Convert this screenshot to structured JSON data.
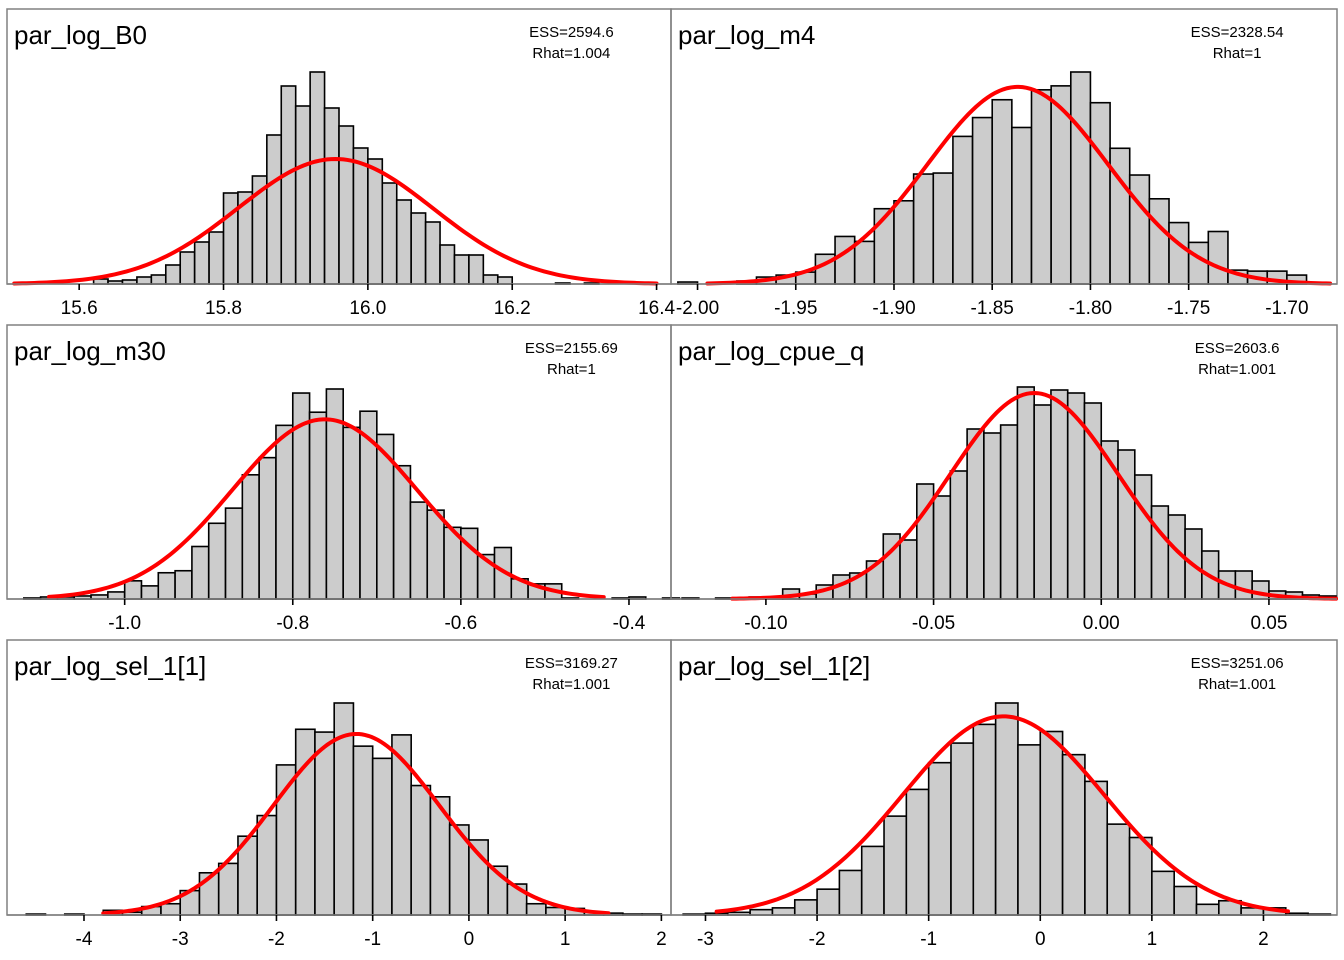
{
  "chart_data": [
    {
      "type": "bar",
      "subtype": "histogram",
      "title": "par_log_B0",
      "annotation": [
        "ESS=2594.6",
        "Rhat=1.004"
      ],
      "xlabel": "",
      "ylabel": "",
      "xlim": [
        15.5,
        16.42
      ],
      "xticks": [
        15.6,
        15.8,
        16.0,
        16.2,
        16.4
      ],
      "xtick_labels": [
        "15.6",
        "15.8",
        "16.0",
        "16.2",
        "16.4"
      ],
      "bin_width": 0.02,
      "bin_starts": [
        15.62,
        15.64,
        15.66,
        15.68,
        15.7,
        15.72,
        15.74,
        15.76,
        15.78,
        15.8,
        15.82,
        15.84,
        15.86,
        15.88,
        15.9,
        15.92,
        15.94,
        15.96,
        15.98,
        16.0,
        16.02,
        16.04,
        16.06,
        16.08,
        16.1,
        16.12,
        16.14,
        16.16,
        16.18,
        16.26,
        16.3
      ],
      "counts": [
        5,
        3,
        4,
        7,
        9,
        19,
        32,
        42,
        52,
        91,
        92,
        108,
        149,
        198,
        178,
        212,
        176,
        158,
        136,
        125,
        101,
        84,
        71,
        62,
        39,
        29,
        29,
        9,
        7,
        1,
        1
      ],
      "fit_curve": {
        "type": "normal",
        "mean": 15.955,
        "sd": 0.135,
        "peak_count": 125,
        "x_range": [
          15.51,
          16.4
        ]
      },
      "grid": false,
      "legend": "none"
    },
    {
      "type": "bar",
      "subtype": "histogram",
      "title": "par_log_m4",
      "annotation": [
        "ESS=2328.54",
        "Rhat=1"
      ],
      "xlabel": "",
      "ylabel": "",
      "xlim": [
        -2.013,
        -1.675
      ],
      "xticks": [
        -2.0,
        -1.95,
        -1.9,
        -1.85,
        -1.8,
        -1.75,
        -1.7
      ],
      "xtick_labels": [
        "-2.00",
        "-1.95",
        "-1.90",
        "-1.85",
        "-1.80",
        "-1.75",
        "-1.70"
      ],
      "bin_width": 0.01,
      "bin_starts": [
        -2.01,
        -2.0,
        -1.99,
        -1.98,
        -1.97,
        -1.96,
        -1.95,
        -1.94,
        -1.93,
        -1.92,
        -1.91,
        -1.9,
        -1.89,
        -1.88,
        -1.87,
        -1.86,
        -1.85,
        -1.84,
        -1.83,
        -1.82,
        -1.81,
        -1.8,
        -1.79,
        -1.78,
        -1.77,
        -1.76,
        -1.75,
        -1.74,
        -1.73,
        -1.72,
        -1.71,
        -1.7
      ],
      "counts": [
        2,
        0,
        0,
        3,
        7,
        9,
        12,
        30,
        48,
        43,
        76,
        84,
        111,
        112,
        149,
        168,
        186,
        158,
        196,
        200,
        214,
        183,
        137,
        110,
        86,
        62,
        42,
        53,
        14,
        13,
        13,
        9
      ],
      "fit_curve": {
        "type": "normal",
        "mean": -1.837,
        "sd": 0.046,
        "peak_count": 199,
        "x_range": [
          -1.995,
          -1.678
        ]
      },
      "grid": false,
      "legend": "none"
    },
    {
      "type": "bar",
      "subtype": "histogram",
      "title": "par_log_m30",
      "annotation": [
        "ESS=2155.69",
        "Rhat=1"
      ],
      "xlabel": "",
      "ylabel": "",
      "xlim": [
        -1.14,
        -0.35
      ],
      "xticks": [
        -1.0,
        -0.8,
        -0.6,
        -0.4
      ],
      "xtick_labels": [
        "-1.0",
        "-0.8",
        "-0.6",
        "-0.4"
      ],
      "bin_width": 0.02,
      "bin_starts": [
        -1.12,
        -1.1,
        -1.08,
        -1.06,
        -1.04,
        -1.02,
        -1.0,
        -0.98,
        -0.96,
        -0.94,
        -0.92,
        -0.9,
        -0.88,
        -0.86,
        -0.84,
        -0.82,
        -0.8,
        -0.78,
        -0.76,
        -0.74,
        -0.72,
        -0.7,
        -0.68,
        -0.66,
        -0.64,
        -0.62,
        -0.6,
        -0.58,
        -0.56,
        -0.54,
        -0.52,
        -0.5,
        -0.48,
        -0.42,
        -0.4,
        -0.36
      ],
      "counts": [
        1,
        2,
        2,
        3,
        4,
        7,
        18,
        13,
        26,
        28,
        52,
        75,
        90,
        123,
        140,
        172,
        204,
        185,
        208,
        170,
        186,
        163,
        132,
        96,
        88,
        71,
        70,
        44,
        51,
        20,
        15,
        15,
        1,
        1,
        2,
        1
      ],
      "fit_curve": {
        "type": "normal",
        "mean": -0.762,
        "sd": 0.11,
        "peak_count": 178,
        "x_range": [
          -1.09,
          -0.43
        ]
      },
      "grid": false,
      "legend": "none"
    },
    {
      "type": "bar",
      "subtype": "histogram",
      "title": "par_log_cpue_q",
      "annotation": [
        "ESS=2603.6",
        "Rhat=1.001"
      ],
      "xlabel": "",
      "ylabel": "",
      "xlim": [
        -0.128,
        0.07
      ],
      "xticks": [
        -0.1,
        -0.05,
        0.0,
        0.05
      ],
      "xtick_labels": [
        "-0.10",
        "-0.05",
        "0.00",
        "0.05"
      ],
      "bin_width": 0.005,
      "bin_starts": [
        -0.125,
        -0.115,
        -0.11,
        -0.105,
        -0.1,
        -0.095,
        -0.09,
        -0.085,
        -0.08,
        -0.075,
        -0.07,
        -0.065,
        -0.06,
        -0.055,
        -0.05,
        -0.045,
        -0.04,
        -0.035,
        -0.03,
        -0.025,
        -0.02,
        -0.015,
        -0.01,
        -0.005,
        0.0,
        0.005,
        0.01,
        0.015,
        0.02,
        0.025,
        0.03,
        0.035,
        0.04,
        0.045,
        0.05,
        0.055,
        0.06,
        0.065
      ],
      "counts": [
        1,
        1,
        1,
        2,
        2,
        10,
        5,
        14,
        24,
        26,
        38,
        65,
        59,
        115,
        103,
        128,
        170,
        166,
        174,
        212,
        194,
        209,
        206,
        196,
        158,
        149,
        124,
        93,
        84,
        70,
        48,
        28,
        28,
        18,
        8,
        7,
        4,
        3
      ],
      "fit_curve": {
        "type": "normal",
        "mean": -0.02,
        "sd": 0.025,
        "peak_count": 206,
        "x_range": [
          -0.11,
          0.07
        ]
      },
      "grid": false,
      "legend": "none"
    },
    {
      "type": "bar",
      "subtype": "histogram",
      "title": "par_log_sel_1[1]",
      "annotation": [
        "ESS=3169.27",
        "Rhat=1.001"
      ],
      "xlabel": "",
      "ylabel": "",
      "xlim": [
        -4.8,
        2.1
      ],
      "xticks": [
        -4,
        -3,
        -2,
        -1,
        0,
        1,
        2
      ],
      "xtick_labels": [
        "-4",
        "-3",
        "-2",
        "-1",
        "0",
        "1",
        "2"
      ],
      "bin_width": 0.2,
      "bin_starts": [
        -4.6,
        -4.2,
        -3.8,
        -3.6,
        -3.4,
        -3.2,
        -3.0,
        -2.8,
        -2.6,
        -2.4,
        -2.2,
        -2.0,
        -1.8,
        -1.6,
        -1.4,
        -1.2,
        -1.0,
        -0.8,
        -0.6,
        -0.4,
        -0.2,
        0.0,
        0.2,
        0.4,
        0.6,
        0.8,
        1.0,
        1.2,
        1.4,
        1.6,
        1.8
      ],
      "counts": [
        1,
        1,
        5,
        3,
        9,
        12,
        26,
        45,
        55,
        84,
        106,
        160,
        198,
        195,
        226,
        180,
        167,
        192,
        138,
        126,
        96,
        80,
        52,
        33,
        12,
        8,
        7,
        3,
        2,
        1,
        1
      ],
      "fit_curve": {
        "type": "normal",
        "mean": -1.17,
        "sd": 0.86,
        "peak_count": 193,
        "x_range": [
          -3.8,
          1.45
        ]
      },
      "grid": false,
      "legend": "none"
    },
    {
      "type": "bar",
      "subtype": "histogram",
      "title": "par_log_sel_1[2]",
      "annotation": [
        "ESS=3251.06",
        "Rhat=1.001"
      ],
      "xlabel": "",
      "ylabel": "",
      "xlim": [
        -3.3,
        2.65
      ],
      "xticks": [
        -3,
        -2,
        -1,
        0,
        1,
        2
      ],
      "xtick_labels": [
        "-3",
        "-2",
        "-1",
        "0",
        "1",
        "2"
      ],
      "bin_width": 0.2,
      "bin_starts": [
        -3.2,
        -3.0,
        -2.8,
        -2.6,
        -2.4,
        -2.2,
        -2.0,
        -1.8,
        -1.6,
        -1.4,
        -1.2,
        -1.0,
        -0.8,
        -0.6,
        -0.4,
        -0.2,
        0.0,
        0.2,
        0.4,
        0.6,
        0.8,
        1.0,
        1.2,
        1.4,
        1.6,
        1.8,
        2.0,
        2.2,
        2.4
      ],
      "counts": [
        1,
        2,
        3,
        6,
        8,
        17,
        29,
        50,
        77,
        111,
        141,
        171,
        193,
        214,
        238,
        191,
        206,
        180,
        150,
        102,
        87,
        49,
        32,
        12,
        16,
        8,
        8,
        2,
        1
      ],
      "fit_curve": {
        "type": "normal",
        "mean": -0.33,
        "sd": 0.9,
        "peak_count": 223,
        "x_range": [
          -2.9,
          2.22
        ]
      },
      "grid": false,
      "legend": "none"
    }
  ]
}
